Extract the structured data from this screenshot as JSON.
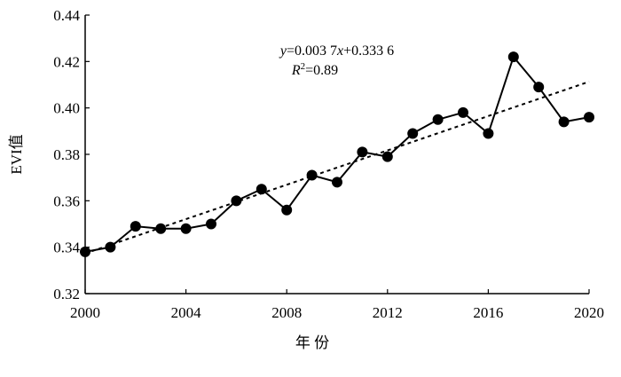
{
  "chart_data": {
    "type": "line",
    "x": [
      2000,
      2001,
      2002,
      2003,
      2004,
      2005,
      2006,
      2007,
      2008,
      2009,
      2010,
      2011,
      2012,
      2013,
      2014,
      2015,
      2016,
      2017,
      2018,
      2019,
      2020
    ],
    "series": [
      {
        "color": "#000000",
        "values": [
          0.338,
          0.34,
          0.349,
          0.348,
          0.348,
          0.35,
          0.36,
          0.365,
          0.356,
          0.371,
          0.368,
          0.381,
          0.379,
          0.389,
          0.395,
          0.398,
          0.389,
          0.422,
          0.409,
          0.394,
          0.396
        ]
      }
    ],
    "trendline": {
      "x": [
        2000,
        2020
      ],
      "values": [
        0.3373,
        0.4113
      ],
      "color": "#000000",
      "dashed": true
    },
    "xlim": [
      2000,
      2020
    ],
    "xticks": [
      2000,
      2004,
      2008,
      2012,
      2016,
      2020
    ],
    "ylim": [
      0.32,
      0.44
    ],
    "yticks": [
      0.32,
      0.34,
      0.36,
      0.38,
      {
        "value": 0.4,
        "label": "0.40"
      },
      0.42,
      0.44
    ],
    "x_label": "年 份",
    "y_label": "EVI值",
    "annotations": [
      [
        "y",
        "=0.003 7",
        "x",
        "+0.333 6"
      ],
      [
        "R",
        "2",
        "=0.89"
      ]
    ]
  }
}
